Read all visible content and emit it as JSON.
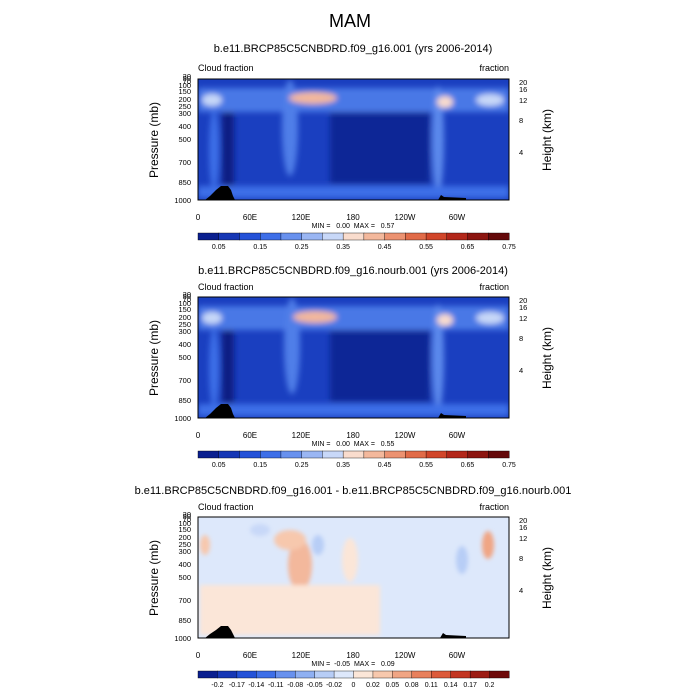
{
  "figure": {
    "title": "MAM"
  },
  "chart_data": [
    {
      "type": "heatmap",
      "title": "b.e11.BRCP85C5CNBDRD.f09_g16.001 (yrs 2006-2014)",
      "left_label": "Cloud fraction",
      "right_label": "fraction",
      "ylabel": "Pressure (mb)",
      "ylabel_right": "Height (km)",
      "x_ticks": [
        "0",
        "60E",
        "120E",
        "180",
        "120W",
        "60W"
      ],
      "y_ticks": [
        "1000",
        "850",
        "700",
        "500",
        "400",
        "300",
        "250",
        "200",
        "150",
        "100",
        "70",
        "50",
        "30"
      ],
      "y_ticks_right": [
        "20",
        "16",
        "12",
        "8",
        "4"
      ],
      "min": 0.0,
      "max": 0.57,
      "stats": "MIN =   0.00  MAX =   0.57",
      "colorbar_labels": [
        "0.05",
        "0.15",
        "0.25",
        "0.35",
        "0.45",
        "0.55",
        "0.65",
        "0.75"
      ],
      "colorbar_colors": [
        "#0a1f8f",
        "#1637b5",
        "#2452d8",
        "#3e6fe8",
        "#6891ee",
        "#9ab6f3",
        "#c8d8f8",
        "#f9dccd",
        "#f3b89c",
        "#ec9271",
        "#e16b48",
        "#d1462a",
        "#b3271a",
        "#8c1510",
        "#64090a"
      ]
    },
    {
      "type": "heatmap",
      "title": "b.e11.BRCP85C5CNBDRD.f09_g16.nourb.001 (yrs 2006-2014)",
      "left_label": "Cloud fraction",
      "right_label": "fraction",
      "ylabel": "Pressure (mb)",
      "ylabel_right": "Height (km)",
      "x_ticks": [
        "0",
        "60E",
        "120E",
        "180",
        "120W",
        "60W"
      ],
      "y_ticks": [
        "1000",
        "850",
        "700",
        "500",
        "400",
        "300",
        "250",
        "200",
        "150",
        "100",
        "70",
        "50",
        "30"
      ],
      "y_ticks_right": [
        "20",
        "16",
        "12",
        "8",
        "4"
      ],
      "min": 0.0,
      "max": 0.55,
      "stats": "MIN =   0.00  MAX =   0.55",
      "colorbar_labels": [
        "0.05",
        "0.15",
        "0.25",
        "0.35",
        "0.45",
        "0.55",
        "0.65",
        "0.75"
      ],
      "colorbar_colors": [
        "#0a1f8f",
        "#1637b5",
        "#2452d8",
        "#3e6fe8",
        "#6891ee",
        "#9ab6f3",
        "#c8d8f8",
        "#f9dccd",
        "#f3b89c",
        "#ec9271",
        "#e16b48",
        "#d1462a",
        "#b3271a",
        "#8c1510",
        "#64090a"
      ]
    },
    {
      "type": "heatmap",
      "title": "b.e11.BRCP85C5CNBDRD.f09_g16.001 - b.e11.BRCP85C5CNBDRD.f09_g16.nourb.001",
      "left_label": "Cloud fraction",
      "right_label": "fraction",
      "ylabel": "Pressure (mb)",
      "ylabel_right": "Height (km)",
      "x_ticks": [
        "0",
        "60E",
        "120E",
        "180",
        "120W",
        "60W"
      ],
      "y_ticks": [
        "1000",
        "850",
        "700",
        "500",
        "400",
        "300",
        "250",
        "200",
        "150",
        "100",
        "70",
        "50",
        "30"
      ],
      "y_ticks_right": [
        "20",
        "16",
        "12",
        "8",
        "4"
      ],
      "min": -0.05,
      "max": 0.09,
      "stats": "MIN =  -0.05  MAX =   0.09",
      "colorbar_labels": [
        "-0.2",
        "-0.17",
        "-0.14",
        "-0.11",
        "-0.08",
        "-0.05",
        "-0.02",
        "0",
        "0.02",
        "0.05",
        "0.08",
        "0.11",
        "0.14",
        "0.17",
        "0.2"
      ],
      "colorbar_colors": [
        "#0a1f8f",
        "#1637b5",
        "#2452d8",
        "#3e6fe8",
        "#6891ee",
        "#8fb0f2",
        "#b7cdf6",
        "#dde8fb",
        "#fbe6d8",
        "#f7c8ad",
        "#f0a584",
        "#e8805c",
        "#dc5a3a",
        "#c33622",
        "#9c1c14",
        "#6e0a0a"
      ]
    }
  ]
}
